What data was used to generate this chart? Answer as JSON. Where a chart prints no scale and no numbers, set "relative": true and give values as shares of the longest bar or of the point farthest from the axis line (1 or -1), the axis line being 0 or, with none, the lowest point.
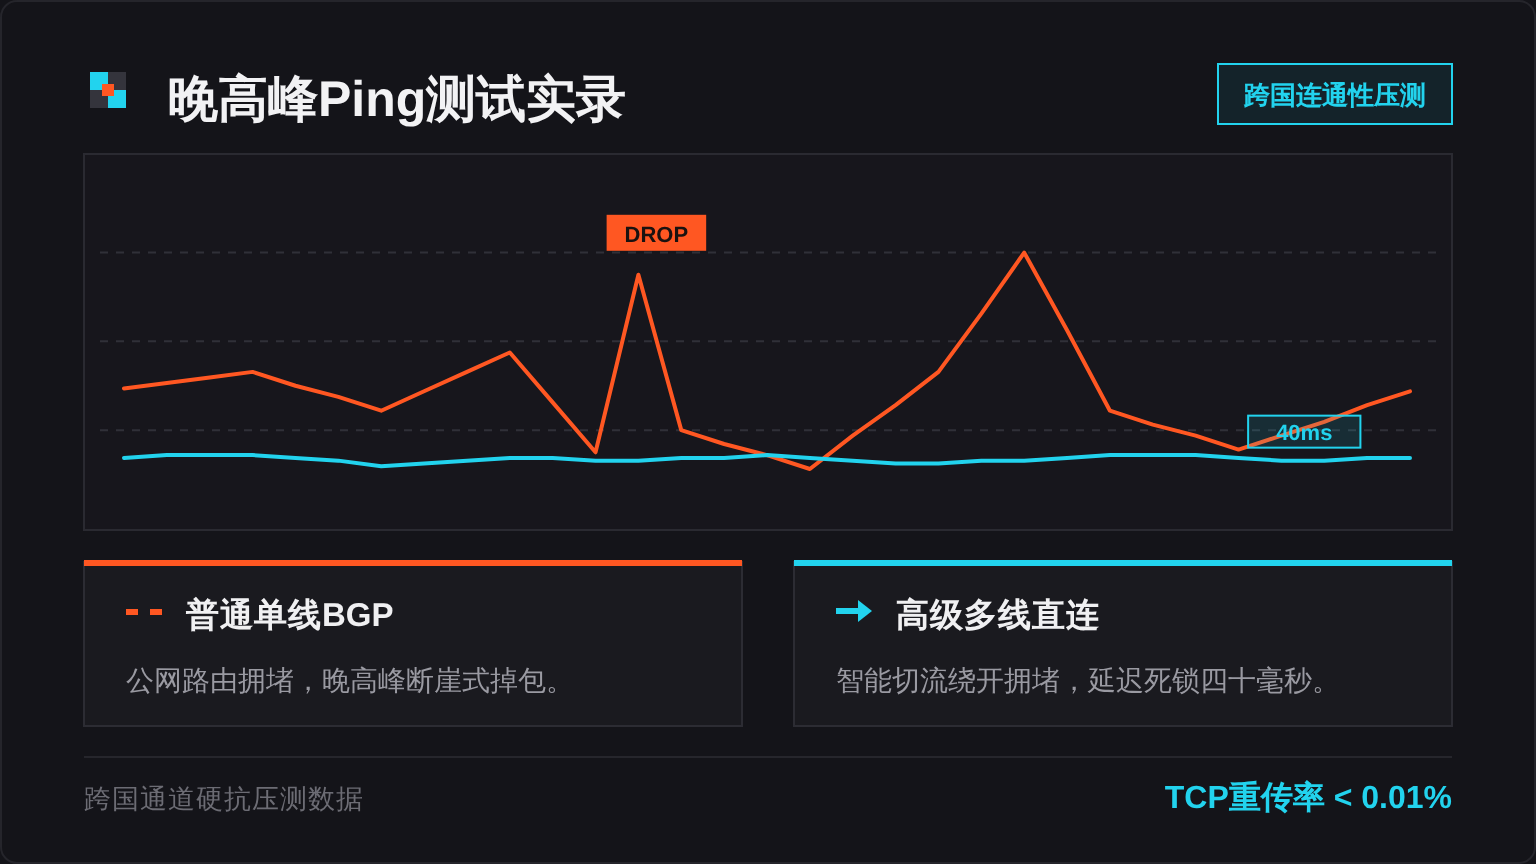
{
  "chart_data": {
    "type": "line",
    "title": "晚高峰Ping测试实录",
    "subtitle": "跨国连通性压测",
    "relative": true,
    "categories": [
      null,
      null,
      null,
      null,
      null,
      null,
      null,
      null,
      null,
      null,
      null,
      null,
      null,
      null,
      null,
      null,
      null,
      null,
      null,
      null,
      null,
      null,
      null,
      null,
      null,
      null,
      null,
      null,
      null,
      null,
      null
    ],
    "legend": "bottom",
    "ref_lines": [
      {
        "axis": "y",
        "value": 1,
        "color": "#303038",
        "line_style": "dashed"
      },
      {
        "axis": "y",
        "value": 0.68,
        "color": "#303038",
        "line_style": "dashed"
      },
      {
        "axis": "y",
        "value": 0.36,
        "color": "#303038",
        "line_style": "dashed"
      }
    ],
    "series": [
      {
        "name": "普通单线BGP",
        "color": "#ff5722",
        "values": [
          0.51,
          0.53,
          0.55,
          0.57,
          0.52,
          0.48,
          0.43,
          0.5,
          0.57,
          0.64,
          0.46,
          0.28,
          0.92,
          0.36,
          0.31,
          0.27,
          0.22,
          0.34,
          0.45,
          0.57,
          0.78,
          1,
          0.72,
          0.43,
          0.38,
          0.34,
          0.29,
          0.34,
          0.39,
          0.45,
          0.5
        ]
      },
      {
        "name": "高级多线直连",
        "color": "#22d3ee",
        "values": [
          0.26,
          0.27,
          0.27,
          0.27,
          0.26,
          0.25,
          0.23,
          0.24,
          0.25,
          0.26,
          0.26,
          0.25,
          0.25,
          0.26,
          0.26,
          0.27,
          0.26,
          0.25,
          0.24,
          0.24,
          0.25,
          0.25,
          0.26,
          0.27,
          0.27,
          0.27,
          0.26,
          0.25,
          0.25,
          0.26,
          0.26
        ]
      }
    ],
    "annotations": [
      "DROP",
      {
        "text": "40ms",
        "y": 0.25
      },
      "公网路由拥堵，晚高峰断崖式掉包。",
      "智能切流绕开拥堵，延迟死锁四十毫秒。",
      "跨国通道硬抗压测数据",
      "TCP重传率 < 0.01%"
    ]
  }
}
